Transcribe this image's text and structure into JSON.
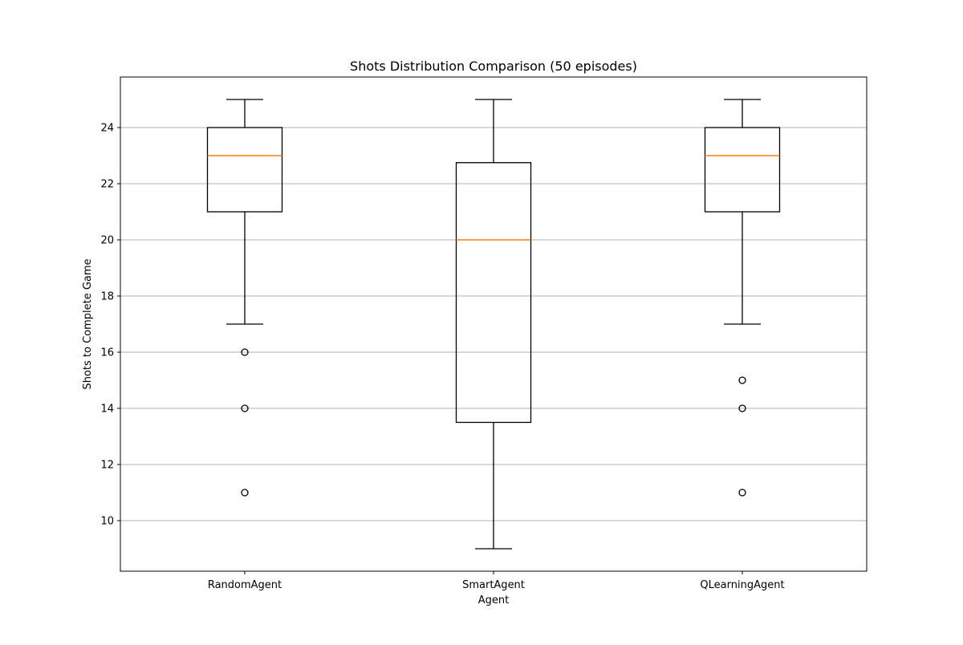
{
  "chart_data": {
    "type": "box",
    "title": "Shots Distribution Comparison (50 episodes)",
    "xlabel": "Agent",
    "ylabel": "Shots to Complete Game",
    "categories": [
      "RandomAgent",
      "SmartAgent",
      "QLearningAgent"
    ],
    "ylim": [
      8.2,
      25.8
    ],
    "yticks": [
      10,
      12,
      14,
      16,
      18,
      20,
      22,
      24
    ],
    "grid": "y",
    "series": [
      {
        "category": "RandomAgent",
        "whisker_low": 17,
        "q1": 21,
        "median": 23,
        "q3": 24,
        "whisker_high": 25,
        "outliers": [
          16,
          14,
          11
        ]
      },
      {
        "category": "SmartAgent",
        "whisker_low": 9,
        "q1": 13.5,
        "median": 20,
        "q3": 22.75,
        "whisker_high": 25,
        "outliers": []
      },
      {
        "category": "QLearningAgent",
        "whisker_low": 17,
        "q1": 21,
        "median": 23,
        "q3": 24,
        "whisker_high": 25,
        "outliers": [
          15,
          14,
          11
        ]
      }
    ],
    "colors": {
      "box": "#000000",
      "median": "#ff7f0e",
      "grid": "#b0b0b0"
    }
  }
}
